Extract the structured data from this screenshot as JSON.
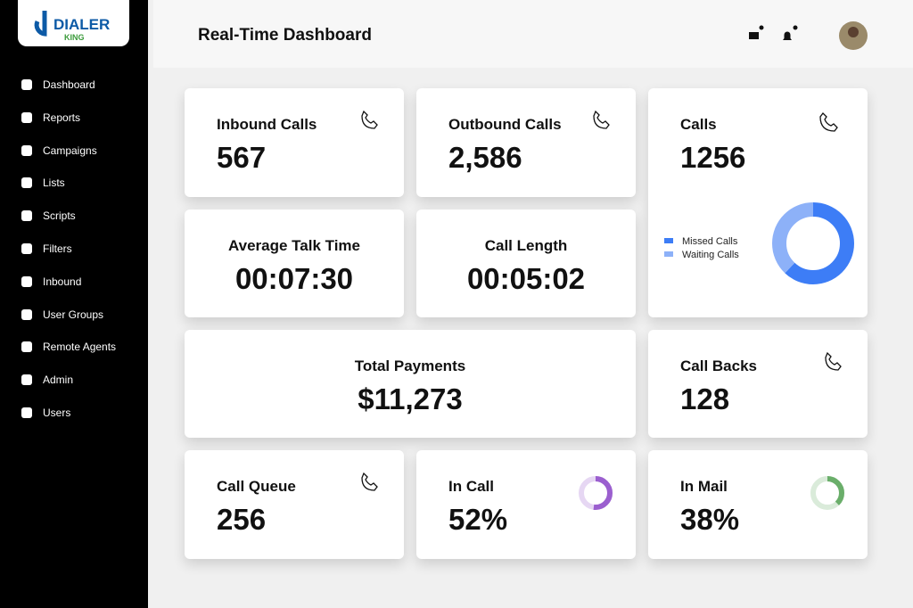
{
  "logo": {
    "text": "DIALER",
    "subtext": "KING"
  },
  "sidebar": {
    "menu": [
      "Dashboard",
      "Reports",
      "Campaigns",
      "Lists",
      "Scripts",
      "Filters",
      "Inbound",
      "User Groups",
      "Remote Agents",
      "Admin",
      "Users"
    ]
  },
  "header": {
    "title": "Real-Time Dashboard"
  },
  "cards": [
    {
      "title": "Inbound Calls",
      "value": "567"
    },
    {
      "title": "Outbound Calls",
      "value": "2,586"
    },
    {
      "title": "Calls",
      "value": "1256",
      "donut": {
        "series": [
          {
            "name": "Missed Calls",
            "color": "#3d7df6",
            "value": 62
          },
          {
            "name": "Waiting Calls",
            "color": "#8db1f8",
            "value": 38
          }
        ]
      }
    },
    {
      "title": "Average Talk Time",
      "value": "00:07:30"
    },
    {
      "title": "Call Length",
      "value": "00:05:02"
    },
    {
      "title": "Total Payments",
      "value": "$11,273"
    },
    {
      "title": "Call Backs",
      "value": "128"
    },
    {
      "title": "Call Queue",
      "value": "256"
    },
    {
      "title": "In Call",
      "value": {
        "value": 52,
        "label": "52%"
      },
      "color": "#9b5fcf"
    },
    {
      "title": "In Mail",
      "value": {
        "value": 38,
        "label": "38%"
      },
      "color": "#6aae6a"
    }
  ]
}
